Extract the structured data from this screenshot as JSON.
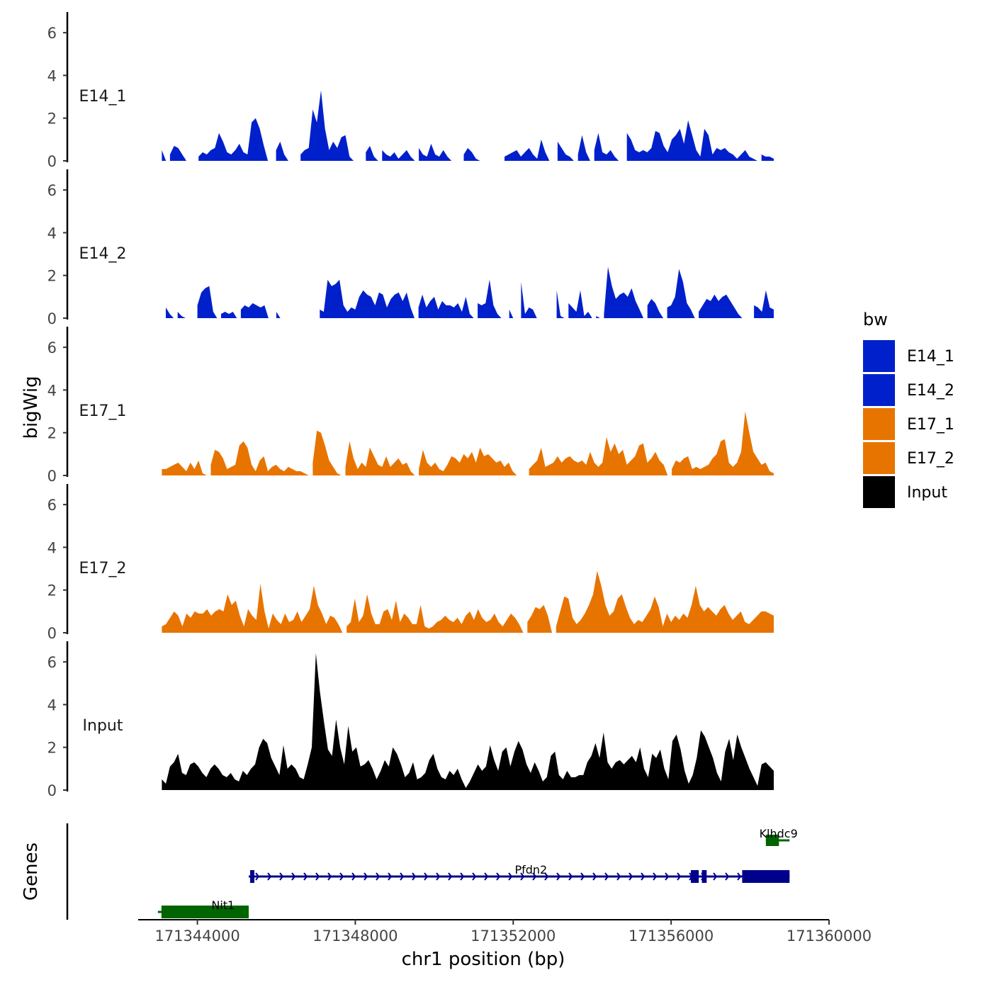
{
  "chart_data": {
    "type": "area",
    "title": "",
    "ylabel": "bigWig",
    "xlabel": "chr1 position (bp)",
    "xlim": [
      171342500,
      171360000
    ],
    "x_ticks": [
      171344000,
      171348000,
      171352000,
      171356000,
      171360000
    ],
    "x_tick_labels": [
      "171344000",
      "171348000",
      "171352000",
      "171356000",
      "171360000"
    ],
    "ylim": [
      0,
      6.7
    ],
    "y_ticks": [
      0,
      2,
      4,
      6
    ],
    "y_tick_labels": [
      "0",
      "2",
      "4",
      "6"
    ],
    "data_xlim": [
      171343100,
      171358600
    ],
    "colors": {
      "E14": "#0020CC",
      "E17": "#E87400",
      "Input": "#000000"
    },
    "legend": {
      "title": "bw",
      "position": "right",
      "entries": [
        {
          "label": "E14_1",
          "color": "#0020CC"
        },
        {
          "label": "E14_2",
          "color": "#0020CC"
        },
        {
          "label": "E17_1",
          "color": "#E87400"
        },
        {
          "label": "E17_2",
          "color": "#E87400"
        },
        {
          "label": "Input",
          "color": "#000000"
        }
      ]
    },
    "series": [
      {
        "name": "E14_1",
        "color": "#0020CC",
        "values": [
          0.5,
          0,
          0.3,
          0.7,
          0.6,
          0.3,
          0,
          0,
          0,
          0.2,
          0.4,
          0.3,
          0.5,
          0.6,
          1.3,
          0.9,
          0.4,
          0.3,
          0.5,
          0.8,
          0.4,
          0.3,
          1.8,
          2.0,
          1.5,
          0.7,
          0,
          0,
          0.5,
          0.9,
          0.3,
          0,
          0,
          0,
          0.3,
          0.5,
          0.6,
          2.4,
          1.8,
          3.3,
          1.5,
          0.5,
          0.9,
          0.6,
          1.1,
          1.2,
          0.2,
          0,
          0,
          0,
          0.4,
          0.7,
          0.2,
          0,
          0.5,
          0.3,
          0.2,
          0.4,
          0.1,
          0.3,
          0.5,
          0.2,
          0,
          0.6,
          0.3,
          0.2,
          0.8,
          0.3,
          0.2,
          0.5,
          0.2,
          0,
          0,
          0,
          0.3,
          0.6,
          0.4,
          0.1,
          0,
          0,
          0,
          0,
          0,
          0,
          0.2,
          0.3,
          0.4,
          0.5,
          0.2,
          0.4,
          0.6,
          0.3,
          0.1,
          1.0,
          0.4,
          0,
          0,
          0.9,
          0.6,
          0.3,
          0.2,
          0,
          0.3,
          1.2,
          0.4,
          0,
          0.5,
          1.3,
          0.4,
          0.3,
          0.5,
          0.2,
          0,
          0,
          1.3,
          1.0,
          0.5,
          0.4,
          0.5,
          0.4,
          0.6,
          1.4,
          1.3,
          0.7,
          0.4,
          1.0,
          1.2,
          1.5,
          0.8,
          1.9,
          1.2,
          0.5,
          0.2,
          1.5,
          1.2,
          0.3,
          0.6,
          0.5,
          0.6,
          0.4,
          0.3,
          0.1,
          0.3,
          0.5,
          0.2,
          0.1,
          0,
          0.3,
          0.2,
          0.2,
          0.1
        ]
      },
      {
        "name": "E14_2",
        "color": "#0020CC",
        "values": [
          0,
          0.5,
          0.2,
          0,
          0.3,
          0.1,
          0,
          0,
          0,
          0.6,
          1.2,
          1.4,
          1.5,
          0.3,
          0,
          0.2,
          0.3,
          0.2,
          0.3,
          0,
          0.4,
          0.6,
          0.5,
          0.7,
          0.6,
          0.5,
          0.6,
          0,
          0,
          0.3,
          0,
          0,
          0,
          0,
          0,
          0,
          0,
          0,
          0,
          0,
          0.4,
          0.3,
          1.8,
          1.5,
          1.6,
          1.8,
          0.6,
          0.3,
          0.5,
          0.4,
          1.0,
          1.3,
          1.1,
          1.0,
          0.6,
          1.2,
          1.1,
          0.5,
          0.9,
          1.1,
          1.2,
          0.8,
          1.2,
          0.5,
          0,
          0.5,
          1.1,
          0.5,
          0.8,
          1.0,
          0.4,
          0.8,
          0.6,
          0.6,
          0.5,
          0.7,
          0.3,
          1.0,
          0.2,
          0,
          0.7,
          0.6,
          0.7,
          1.8,
          0.6,
          0.2,
          0,
          0,
          0.4,
          0,
          0,
          1.7,
          0.2,
          0.5,
          0.4,
          0,
          0,
          0,
          0,
          0,
          1.3,
          0.1,
          0,
          0.7,
          0.5,
          0.3,
          1.3,
          0.1,
          0.3,
          0,
          0.1,
          0,
          0.2,
          2.4,
          1.5,
          0.9,
          1.1,
          1.2,
          1.0,
          1.4,
          0.8,
          0.4,
          0,
          0.6,
          0.9,
          0.7,
          0.3,
          0,
          0.5,
          0.6,
          1.0,
          2.3,
          1.7,
          0.7,
          0.4,
          0,
          0.3,
          0.6,
          0.9,
          0.8,
          1.1,
          0.8,
          1.0,
          1.1,
          0.8,
          0.5,
          0.2,
          0,
          0,
          0,
          0.6,
          0.5,
          0.3,
          1.3,
          0.5,
          0.4
        ]
      },
      {
        "name": "E17_1",
        "color": "#E87400",
        "values": [
          0.3,
          0.3,
          0.4,
          0.5,
          0.6,
          0.4,
          0.2,
          0.6,
          0.3,
          0.7,
          0.1,
          0,
          0.5,
          1.2,
          1.1,
          0.8,
          0.3,
          0.4,
          0.5,
          1.4,
          1.6,
          1.3,
          0.5,
          0.2,
          0.7,
          0.9,
          0.2,
          0.4,
          0.5,
          0.3,
          0.2,
          0.4,
          0.3,
          0.2,
          0.2,
          0.1,
          0,
          0.6,
          2.1,
          2.0,
          1.4,
          0.7,
          0.4,
          0.1,
          0,
          0.4,
          1.6,
          0.8,
          0.3,
          0.6,
          0.4,
          1.3,
          0.9,
          0.5,
          0.4,
          0.9,
          0.4,
          0.6,
          0.8,
          0.5,
          0.6,
          0.2,
          0,
          0.3,
          1.2,
          0.6,
          0.4,
          0.6,
          0.3,
          0.2,
          0.5,
          0.9,
          0.8,
          0.6,
          1.0,
          0.8,
          1.1,
          0.6,
          1.3,
          0.9,
          1.0,
          0.8,
          0.6,
          0.7,
          0.4,
          0.6,
          0.2,
          0,
          0,
          0,
          0.3,
          0.5,
          0.7,
          1.3,
          0.4,
          0.5,
          0.6,
          0.9,
          0.6,
          0.8,
          0.9,
          0.7,
          0.6,
          0.7,
          0.5,
          1.1,
          0.6,
          0.4,
          0.6,
          1.8,
          1.1,
          1.5,
          1.0,
          1.2,
          0.5,
          0.7,
          0.9,
          1.4,
          1.5,
          0.6,
          0.8,
          1.1,
          0.7,
          0.5,
          0,
          0.3,
          0.7,
          0.6,
          0.8,
          0.9,
          0.3,
          0.4,
          0.3,
          0.4,
          0.5,
          0.8,
          1.0,
          1.6,
          1.7,
          0.6,
          0.4,
          0.6,
          1.1,
          3.0,
          2.0,
          1.1,
          0.8,
          0.5,
          0.6,
          0.2,
          0.1
        ]
      },
      {
        "name": "E17_2",
        "color": "#E87400",
        "values": [
          0.3,
          0.4,
          0.7,
          1.0,
          0.8,
          0.3,
          0.9,
          0.7,
          1.0,
          0.9,
          0.9,
          1.1,
          0.8,
          1.0,
          1.1,
          1.0,
          1.8,
          1.3,
          1.5,
          0.8,
          0.3,
          1.1,
          0.8,
          0.6,
          2.3,
          1.0,
          0.2,
          0.9,
          0.6,
          0.4,
          0.9,
          0.5,
          0.6,
          1.0,
          0.5,
          0.8,
          1.1,
          2.2,
          1.3,
          0.9,
          0.4,
          0.8,
          0.7,
          0.4,
          0,
          0.3,
          0.5,
          1.6,
          0.5,
          0.8,
          1.8,
          0.9,
          0.4,
          0.4,
          1.0,
          1.1,
          0.6,
          1.5,
          0.5,
          0.9,
          0.7,
          0.4,
          0.4,
          1.3,
          0.3,
          0.2,
          0.3,
          0.5,
          0.6,
          0.8,
          0.6,
          0.5,
          0.7,
          0.4,
          0.8,
          1.0,
          0.6,
          1.1,
          0.7,
          0.5,
          0.6,
          0.9,
          0.5,
          0.3,
          0.6,
          0.9,
          0.7,
          0.4,
          0,
          0.5,
          0.8,
          1.2,
          1.1,
          1.3,
          0.8,
          0,
          0.3,
          1.0,
          1.7,
          1.6,
          0.7,
          0.4,
          0.6,
          0.9,
          1.3,
          1.8,
          2.9,
          2.2,
          1.3,
          0.8,
          1.0,
          1.6,
          1.8,
          1.2,
          0.7,
          0.4,
          0.6,
          0.5,
          0.8,
          1.1,
          1.7,
          1.2,
          0.3,
          0.9,
          0.5,
          0.8,
          0.6,
          0.9,
          0.7,
          1.3,
          2.2,
          1.3,
          1.0,
          1.2,
          1.0,
          0.8,
          1.1,
          1.3,
          0.9,
          0.6,
          0.8,
          1.0,
          0.5,
          0.4,
          0.6,
          0.8,
          1.0,
          1.0,
          0.9,
          0.8
        ]
      },
      {
        "name": "Input",
        "color": "#000000",
        "values": [
          0.5,
          0.3,
          1.1,
          1.3,
          1.7,
          0.8,
          0.7,
          1.2,
          1.3,
          1.1,
          0.8,
          0.6,
          1.0,
          1.2,
          1.0,
          0.7,
          0.6,
          0.8,
          0.5,
          0.4,
          0.9,
          0.7,
          1.0,
          1.2,
          2.0,
          2.4,
          2.2,
          1.5,
          1.1,
          0.7,
          2.1,
          1.0,
          1.2,
          1.0,
          0.6,
          0.5,
          1.2,
          2.0,
          6.4,
          4.6,
          3.2,
          1.9,
          1.6,
          3.3,
          2.0,
          1.2,
          3.0,
          1.8,
          2.0,
          1.1,
          1.2,
          1.4,
          1.0,
          0.5,
          0.9,
          1.4,
          1.1,
          2.0,
          1.7,
          1.2,
          0.6,
          0.8,
          1.3,
          0.5,
          0.6,
          0.8,
          1.4,
          1.7,
          1.0,
          0.6,
          0.5,
          0.9,
          0.7,
          1.0,
          0.5,
          0.1,
          0.4,
          0.8,
          1.2,
          0.9,
          1.1,
          2.1,
          1.4,
          0.9,
          1.8,
          2.0,
          1.1,
          1.8,
          2.3,
          1.9,
          1.2,
          0.8,
          1.3,
          0.9,
          0.4,
          0.6,
          1.6,
          1.8,
          0.7,
          0.5,
          0.9,
          0.6,
          0.6,
          0.7,
          0.7,
          1.3,
          1.6,
          2.2,
          1.5,
          2.7,
          1.3,
          1.0,
          1.3,
          1.4,
          1.2,
          1.4,
          1.6,
          1.3,
          2.0,
          1.0,
          0.6,
          1.7,
          1.5,
          1.9,
          1.0,
          0.5,
          2.3,
          2.6,
          1.9,
          0.9,
          0.3,
          0.7,
          1.5,
          2.8,
          2.5,
          2.0,
          1.5,
          0.8,
          0.4,
          1.8,
          2.4,
          1.4,
          2.6,
          2.0,
          1.5,
          1.0,
          0.6,
          0.2,
          1.2,
          1.3,
          1.1,
          0.9
        ]
      }
    ],
    "genes_track": {
      "ylabel": "Genes",
      "genes": [
        {
          "name": "Klhdc9",
          "start": 171358400,
          "end": 171359000,
          "strand": "-",
          "color": "#006400",
          "row": 1
        },
        {
          "name": "Pfdn2",
          "start": 171345300,
          "end": 171359000,
          "strand": "+",
          "color": "#00008B",
          "row": 2
        },
        {
          "name": "Nit1",
          "start": 171343000,
          "end": 171345300,
          "strand": "+",
          "color": "#006400",
          "row": 3
        }
      ]
    }
  }
}
